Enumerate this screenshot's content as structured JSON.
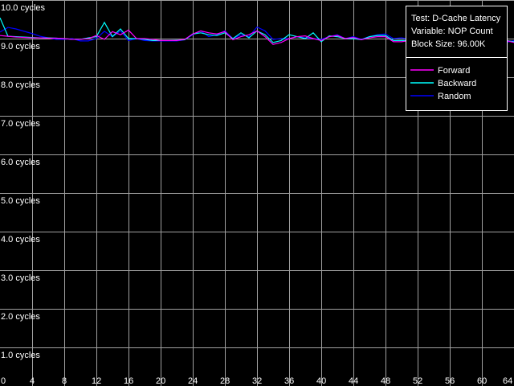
{
  "chart_data": {
    "type": "line",
    "ylim": [
      0,
      10
    ],
    "xlim": [
      0,
      64
    ],
    "grid": true,
    "y_ticks": [
      1,
      2,
      3,
      4,
      5,
      6,
      7,
      8,
      9,
      10
    ],
    "y_tick_labels": [
      "1.0 cycles",
      "2.0 cycles",
      "3.0 cycles",
      "4.0 cycles",
      "5.0 cycles",
      "6.0 cycles",
      "7.0 cycles",
      "8.0 cycles",
      "9.0 cycles",
      "10.0 cycles"
    ],
    "x_ticks": [
      0,
      4,
      8,
      12,
      16,
      20,
      24,
      28,
      32,
      36,
      40,
      44,
      48,
      52,
      56,
      60,
      64
    ],
    "x_tick_labels": [
      "0",
      "4",
      "8",
      "12",
      "16",
      "20",
      "24",
      "28",
      "32",
      "36",
      "40",
      "44",
      "48",
      "52",
      "56",
      "60",
      "64"
    ],
    "info": [
      "Test: D-Cache Latency",
      "Variable: NOP Count",
      "Block Size: 96.00K"
    ],
    "legend_position": "top-right",
    "series": [
      {
        "name": "Forward",
        "color": "#ff00ff",
        "values": [
          9.08,
          9.06,
          9.04,
          9.03,
          9.02,
          9.02,
          9.01,
          9.01,
          9.0,
          8.98,
          8.98,
          9.0,
          9.08,
          8.98,
          9.18,
          9.1,
          9.22,
          9.0,
          9.0,
          8.98,
          8.95,
          8.95,
          8.95,
          8.98,
          9.12,
          9.2,
          9.15,
          9.12,
          9.18,
          8.97,
          9.05,
          9.1,
          9.2,
          9.05,
          8.85,
          8.9,
          9.0,
          9.05,
          9.07,
          9.0,
          8.95,
          9.05,
          9.08,
          9.0,
          9.03,
          8.97,
          9.02,
          9.05,
          9.05,
          8.92,
          8.92,
          8.95,
          8.95,
          8.95,
          8.95,
          8.93,
          8.93,
          8.93,
          8.9,
          8.85,
          8.88,
          8.95,
          8.92,
          8.95,
          8.9
        ]
      },
      {
        "name": "Backward",
        "color": "#00ffff",
        "values": [
          9.54,
          9.06,
          9.05,
          9.04,
          9.03,
          9.02,
          9.02,
          9.01,
          9.0,
          8.98,
          8.98,
          9.02,
          9.05,
          9.42,
          9.05,
          9.25,
          9.0,
          9.0,
          8.98,
          8.95,
          8.95,
          8.95,
          8.96,
          8.97,
          9.12,
          9.15,
          9.1,
          9.08,
          9.15,
          9.0,
          9.15,
          9.02,
          9.2,
          9.1,
          8.9,
          8.95,
          9.1,
          9.05,
          9.0,
          9.15,
          8.92,
          9.07,
          9.05,
          9.0,
          9.0,
          8.97,
          9.05,
          9.08,
          9.08,
          8.95,
          8.95,
          8.95,
          8.95,
          8.95,
          8.92,
          9.2,
          8.95,
          8.9,
          8.95,
          9.0,
          8.98,
          9.0,
          8.97,
          8.95,
          8.92
        ]
      },
      {
        "name": "Random",
        "color": "#0000ff",
        "values": [
          9.17,
          9.29,
          9.25,
          9.19,
          9.13,
          9.06,
          9.02,
          8.98,
          8.98,
          9.0,
          8.94,
          8.94,
          9.0,
          9.19,
          9.05,
          9.2,
          8.95,
          9.0,
          8.95,
          8.94,
          8.94,
          8.94,
          8.94,
          8.97,
          9.1,
          9.2,
          9.05,
          9.1,
          9.2,
          9.0,
          9.1,
          9.05,
          9.3,
          9.2,
          8.98,
          9.0,
          9.0,
          9.05,
          9.02,
          9.0,
          8.98,
          9.05,
          9.1,
          9.0,
          9.05,
          8.98,
          9.05,
          9.1,
          9.12,
          9.0,
          9.02,
          8.98,
          8.95,
          8.95,
          8.97,
          8.94,
          8.93,
          8.92,
          8.9,
          8.87,
          8.9,
          8.93,
          8.95,
          8.9,
          8.95
        ]
      }
    ]
  }
}
